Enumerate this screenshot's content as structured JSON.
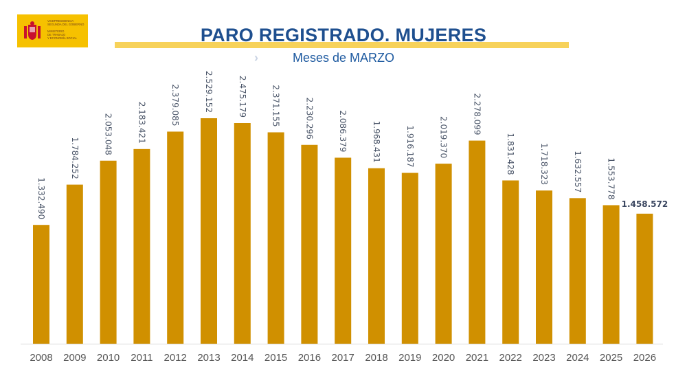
{
  "logo": {
    "text": "VICEPRESIDENCIA\nSEGUNDA DEL GOBIERNO\n\nMINISTERIO\nDE TRABAJO\nY ECONOMÍA SOCIAL"
  },
  "header": {
    "title": "PARO REGISTRADO. MUJERES",
    "subtitle": "Meses de MARZO",
    "chevron_icon": "chevron-right-icon"
  },
  "colors": {
    "bar": "#d09000",
    "title": "#1e4f8f",
    "band": "#f7d25a",
    "label": "#4a5568"
  },
  "chart_data": {
    "type": "bar",
    "title": "PARO REGISTRADO. MUJERES",
    "subtitle": "Meses de MARZO",
    "categories": [
      "2008",
      "2009",
      "2010",
      "2011",
      "2012",
      "2013",
      "2014",
      "2015",
      "2016",
      "2017",
      "2018",
      "2019",
      "2020",
      "2021",
      "2022",
      "2023",
      "2024",
      "2025",
      "2026"
    ],
    "values": [
      1332490,
      1784252,
      2053048,
      2183421,
      2379085,
      2529152,
      2475179,
      2371155,
      2230296,
      2086379,
      1968431,
      1916187,
      2019370,
      2278099,
      1831428,
      1718323,
      1632557,
      1553778,
      1458572
    ],
    "data_labels": [
      "1.332.490",
      "1.784.252",
      "2.053.048",
      "2.183.421",
      "2.379.085",
      "2.529.152",
      "2.475.179",
      "2.371.155",
      "2.230.296",
      "2.086.379",
      "1.968.431",
      "1.916.187",
      "2.019.370",
      "2.278.099",
      "1.831.428",
      "1.718.323",
      "1.632.557",
      "1.553.778",
      "1.458.572"
    ],
    "xlabel": "",
    "ylabel": "",
    "ylim": [
      0,
      2529152
    ],
    "grid": false,
    "legend": "none"
  }
}
